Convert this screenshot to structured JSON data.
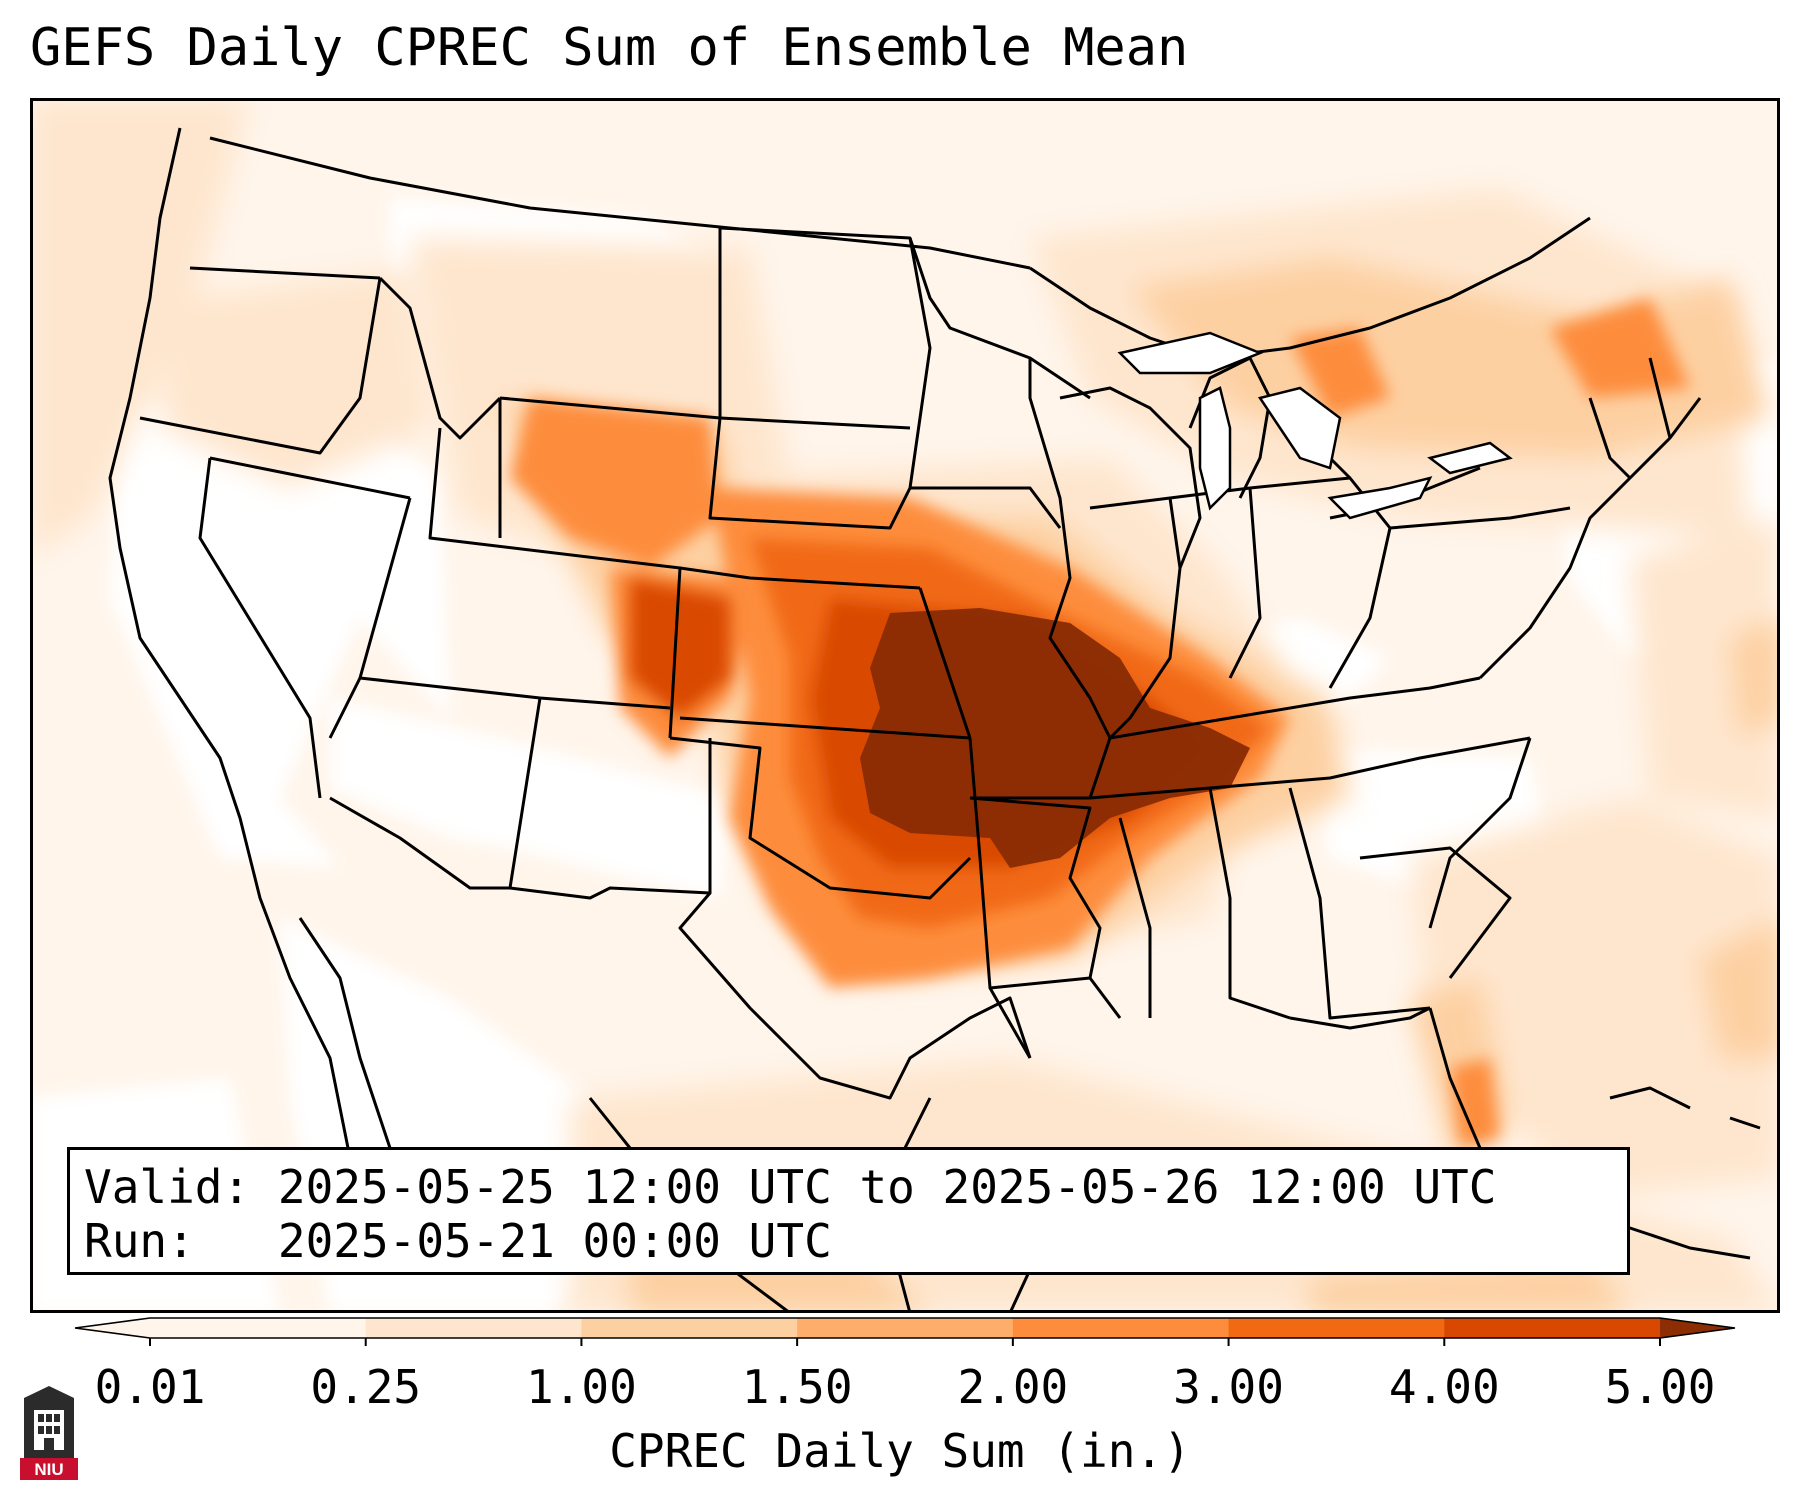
{
  "title": "GEFS Daily CPREC Sum of Ensemble Mean",
  "info": {
    "valid_label": "Valid:",
    "valid_value": "2025-05-25 12:00 UTC to 2025-05-26 12:00 UTC",
    "run_label": "Run:",
    "run_value": "2025-05-21 00:00 UTC"
  },
  "colorbar": {
    "label": "CPREC Daily Sum (in.)",
    "ticks": [
      "0.01",
      "0.25",
      "1.00",
      "1.50",
      "2.00",
      "3.00",
      "4.00",
      "5.00"
    ],
    "colors": [
      "#fff5eb",
      "#fee6ce",
      "#fdd0a2",
      "#fdae6b",
      "#fd8d3c",
      "#f16913",
      "#d94801",
      "#8c2d04"
    ],
    "extend": "both"
  },
  "map": {
    "region": "CONUS",
    "colors": {
      "background": "#fff5eb",
      "low": "#fee6ce",
      "light": "#fdd0a2",
      "moderate": "#fdae6b",
      "medium": "#fd8d3c",
      "high": "#f16913",
      "very_high": "#d94801",
      "extreme": "#8c2d04"
    }
  },
  "logo": {
    "text": "NIU"
  }
}
